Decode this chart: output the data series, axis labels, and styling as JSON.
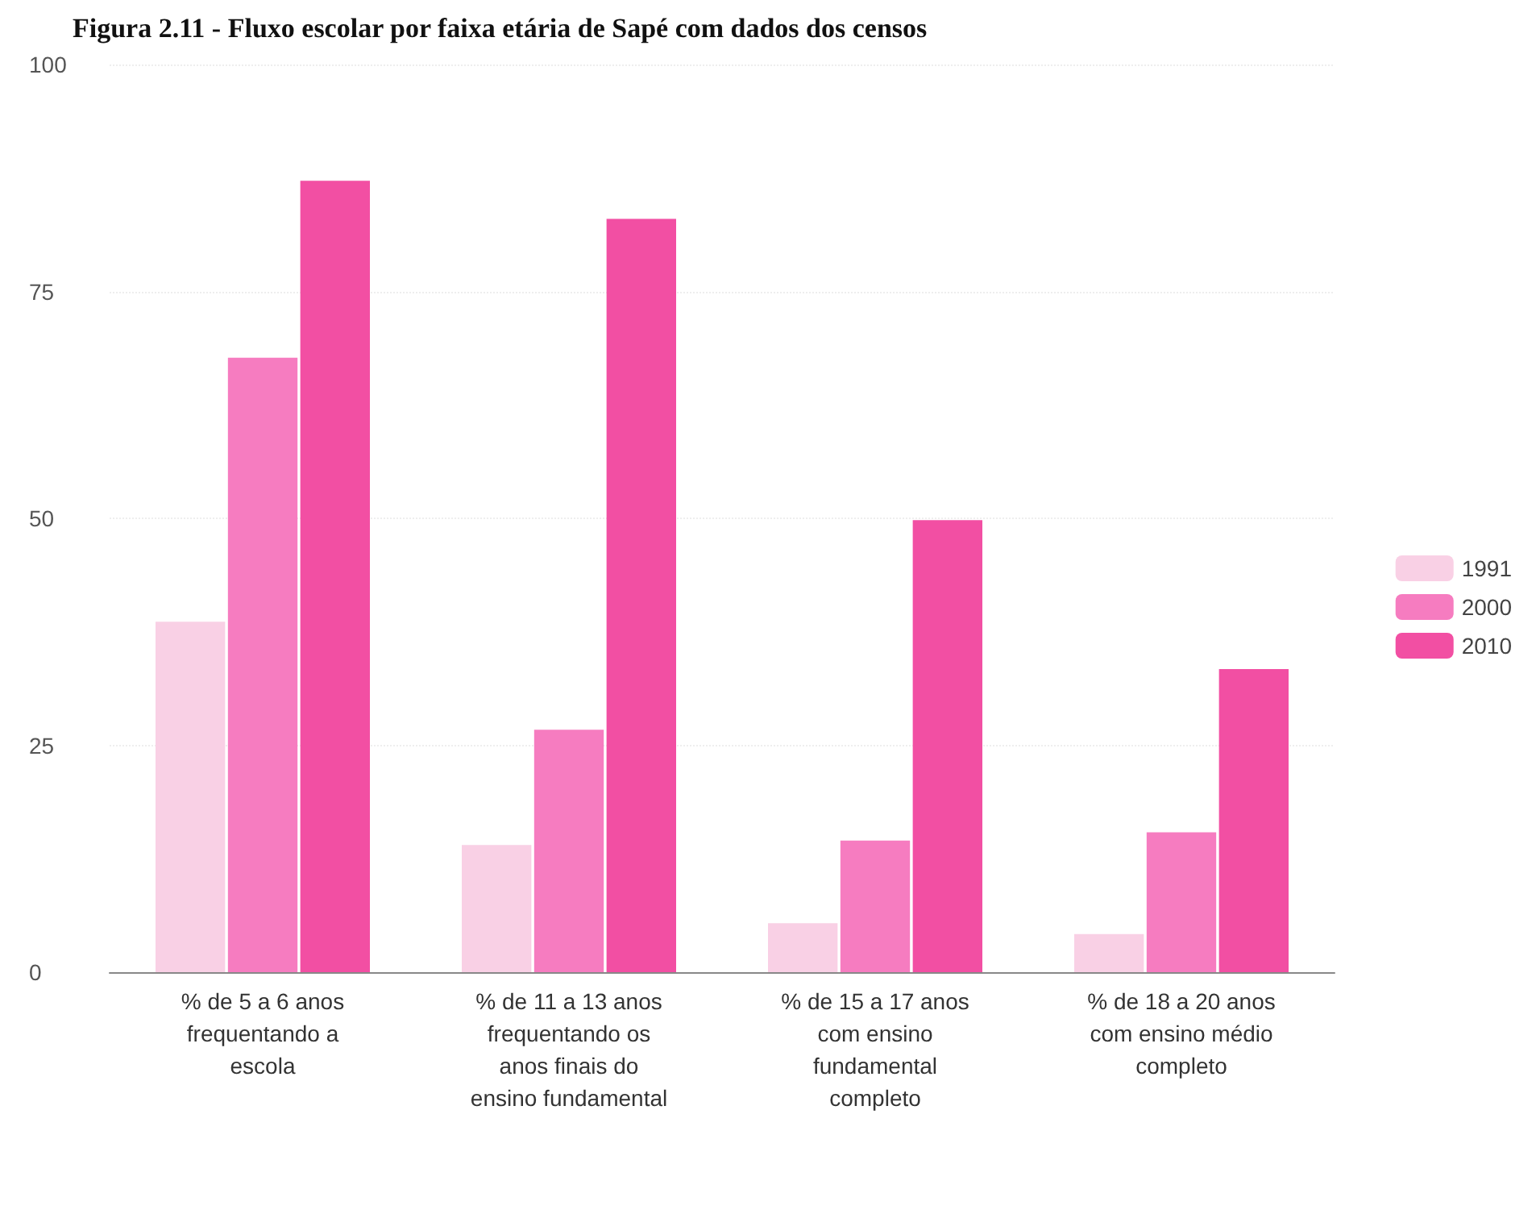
{
  "chart_data": {
    "type": "bar",
    "title": "Figura 2.11 - Fluxo escolar por faixa etária de Sapé com dados dos censos",
    "categories": [
      "% de 5 a 6 anos frequentando a escola",
      "% de 11 a 13 anos frequentando os anos finais do ensino fundamental",
      "% de 15 a 17 anos com ensino fundamental completo",
      "% de 18 a 20 anos com ensino médio completo"
    ],
    "series": [
      {
        "name": "1991",
        "color": "#f9d0e5",
        "values": [
          38.6,
          14,
          5.4,
          4.2
        ]
      },
      {
        "name": "2000",
        "color": "#f67cc0",
        "values": [
          67.7,
          26.7,
          14.5,
          15.4
        ]
      },
      {
        "name": "2010",
        "color": "#f24fa3",
        "values": [
          87.2,
          83,
          49.8,
          33.4
        ]
      }
    ],
    "ylim": [
      0,
      100
    ],
    "yticks": [
      0,
      25,
      50,
      75,
      100
    ],
    "grid": "y",
    "legend": "right"
  }
}
